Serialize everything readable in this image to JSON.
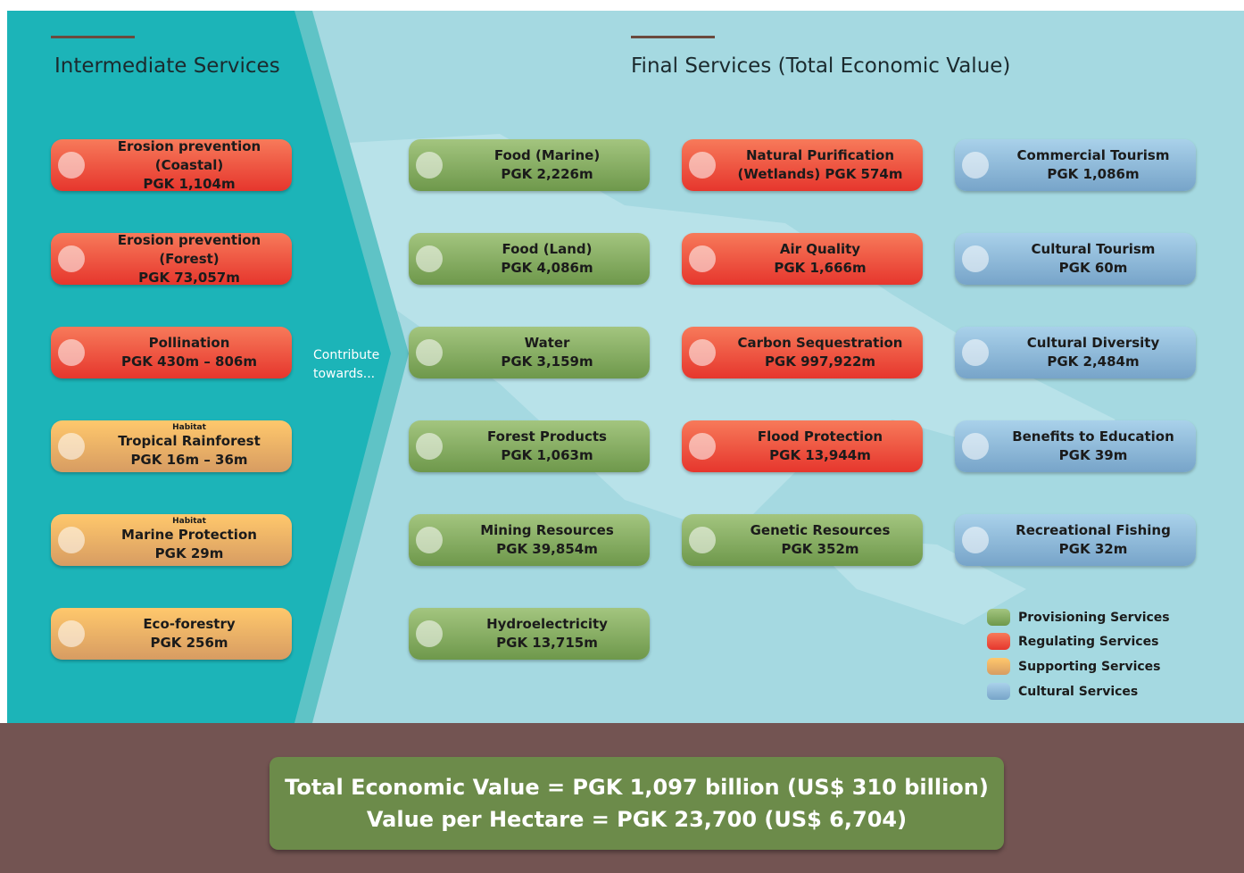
{
  "intermediate": {
    "heading": "Intermediate Services",
    "items": [
      {
        "title": "Erosion prevention (Coastal)",
        "value": "PGK 1,104m"
      },
      {
        "title": "Erosion prevention (Forest)",
        "value": "PGK 73,057m"
      },
      {
        "title": "Pollination",
        "value": "PGK 430m – 806m"
      },
      {
        "tag": "Habitat",
        "title": "Tropical Rainforest",
        "value": "PGK 16m – 36m"
      },
      {
        "tag": "Habitat",
        "title": "Marine Protection",
        "value": "PGK 29m"
      },
      {
        "title": "Eco-forestry",
        "value": "PGK 256m"
      }
    ]
  },
  "connector": "Contribute towards...",
  "final": {
    "heading": "Final Services (Total Economic Value)",
    "columns": [
      [
        {
          "title": "Food (Marine)",
          "value": "PGK 2,226m"
        },
        {
          "title": "Food (Land)",
          "value": "PGK 4,086m"
        },
        {
          "title": "Water",
          "value": "PGK 3,159m"
        },
        {
          "title": "Forest Products",
          "value": "PGK 1,063m"
        },
        {
          "title": "Mining Resources",
          "value": "PGK 39,854m"
        },
        {
          "title": "Hydroelectricity",
          "value": "PGK 13,715m"
        }
      ],
      [
        {
          "title": "Natural Purification",
          "value": "(Wetlands) PGK 574m"
        },
        {
          "title": "Air Quality",
          "value": "PGK 1,666m"
        },
        {
          "title": "Carbon Sequestration",
          "value": "PGK 997,922m"
        },
        {
          "title": "Flood Protection",
          "value": "PGK 13,944m"
        },
        {
          "title": "Genetic Resources",
          "value": "PGK 352m"
        }
      ],
      [
        {
          "title": "Commercial Tourism",
          "value": "PGK 1,086m"
        },
        {
          "title": "Cultural Tourism",
          "value": "PGK 60m"
        },
        {
          "title": "Cultural Diversity",
          "value": "PGK 2,484m"
        },
        {
          "title": "Benefits to Education",
          "value": "PGK 39m"
        },
        {
          "title": "Recreational Fishing",
          "value": "PGK 32m"
        }
      ]
    ]
  },
  "legend": [
    "Provisioning Services",
    "Regulating Services",
    "Supporting Services",
    "Cultural Services"
  ],
  "totals": [
    "Total Economic Value = PGK 1,097 billion (US$ 310 billion)",
    "Value per Hectare = PGK 23,700 (US$ 6,704)"
  ]
}
